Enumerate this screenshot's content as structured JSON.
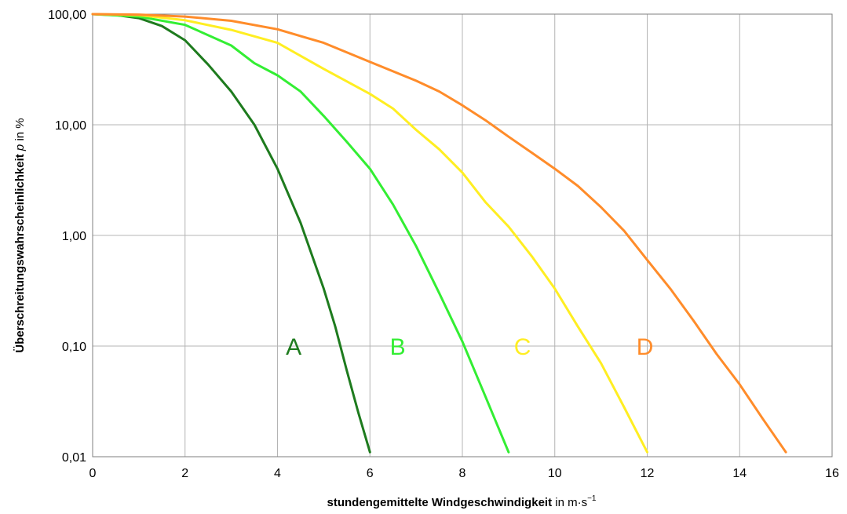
{
  "chart_data": {
    "type": "line",
    "title": "",
    "xlabel": {
      "bold_part": "stundengemittelte Windgeschwindigkeit",
      "normal_part": " in m·s",
      "superscript": "−1"
    },
    "ylabel": {
      "bold_part": "Überschreitungswahrscheinlichkeit",
      "italic_part": "p",
      "normal_part": " in %"
    },
    "x_scale": "linear",
    "y_scale": "log",
    "xlim": [
      0,
      16
    ],
    "ylim": [
      0.01,
      100
    ],
    "x_ticks": [
      0,
      2,
      4,
      6,
      8,
      10,
      12,
      14,
      16
    ],
    "x_tick_labels": [
      "0",
      "2",
      "4",
      "6",
      "8",
      "10",
      "12",
      "14",
      "16"
    ],
    "y_ticks": [
      0.01,
      0.1,
      1,
      10,
      100
    ],
    "y_tick_labels": [
      "0,01",
      "0,10",
      "1,00",
      "10,00",
      "100,00"
    ],
    "grid": true,
    "legend": "none",
    "series": [
      {
        "name": "A",
        "color": "#1e7b1e",
        "label_position": {
          "x": 4.35,
          "y": 0.1
        },
        "points": [
          [
            0,
            100
          ],
          [
            0.5,
            98
          ],
          [
            1,
            92
          ],
          [
            1.5,
            78
          ],
          [
            2,
            58
          ],
          [
            2.5,
            35
          ],
          [
            3,
            20
          ],
          [
            3.5,
            10
          ],
          [
            4,
            4
          ],
          [
            4.5,
            1.3
          ],
          [
            5,
            0.33
          ],
          [
            5.25,
            0.15
          ],
          [
            5.5,
            0.06
          ],
          [
            5.75,
            0.025
          ],
          [
            6,
            0.011
          ]
        ]
      },
      {
        "name": "B",
        "color": "#33ee33",
        "label_position": {
          "x": 6.6,
          "y": 0.1
        },
        "points": [
          [
            0,
            100
          ],
          [
            1,
            95
          ],
          [
            2,
            80
          ],
          [
            3,
            52
          ],
          [
            3.5,
            36
          ],
          [
            4,
            28
          ],
          [
            4.5,
            20
          ],
          [
            5,
            12
          ],
          [
            5.5,
            7
          ],
          [
            6,
            4
          ],
          [
            6.5,
            1.9
          ],
          [
            7,
            0.8
          ],
          [
            7.5,
            0.3
          ],
          [
            8,
            0.11
          ],
          [
            8.5,
            0.035
          ],
          [
            9,
            0.011
          ]
        ]
      },
      {
        "name": "C",
        "color": "#ffee22",
        "label_position": {
          "x": 9.3,
          "y": 0.1
        },
        "points": [
          [
            0,
            100
          ],
          [
            1,
            98
          ],
          [
            2,
            88
          ],
          [
            3,
            72
          ],
          [
            4,
            55
          ],
          [
            5,
            32
          ],
          [
            6,
            19
          ],
          [
            6.5,
            14
          ],
          [
            7,
            9
          ],
          [
            7.5,
            6
          ],
          [
            8,
            3.7
          ],
          [
            8.5,
            2
          ],
          [
            9,
            1.2
          ],
          [
            9.5,
            0.65
          ],
          [
            10,
            0.33
          ],
          [
            10.5,
            0.15
          ],
          [
            11,
            0.07
          ],
          [
            11.5,
            0.028
          ],
          [
            12,
            0.011
          ]
        ]
      },
      {
        "name": "D",
        "color": "#ff8c2a",
        "label_position": {
          "x": 11.95,
          "y": 0.1
        },
        "points": [
          [
            0,
            100
          ],
          [
            1,
            99
          ],
          [
            2,
            95
          ],
          [
            3,
            87
          ],
          [
            4,
            73
          ],
          [
            5,
            55
          ],
          [
            6,
            37
          ],
          [
            7,
            25
          ],
          [
            7.5,
            20
          ],
          [
            8,
            15
          ],
          [
            8.5,
            11
          ],
          [
            9,
            7.8
          ],
          [
            9.5,
            5.6
          ],
          [
            10,
            4
          ],
          [
            10.5,
            2.8
          ],
          [
            11,
            1.8
          ],
          [
            11.5,
            1.1
          ],
          [
            12,
            0.6
          ],
          [
            12.5,
            0.33
          ],
          [
            13,
            0.17
          ],
          [
            13.5,
            0.085
          ],
          [
            14,
            0.045
          ],
          [
            14.5,
            0.022
          ],
          [
            15,
            0.011
          ]
        ]
      }
    ]
  }
}
